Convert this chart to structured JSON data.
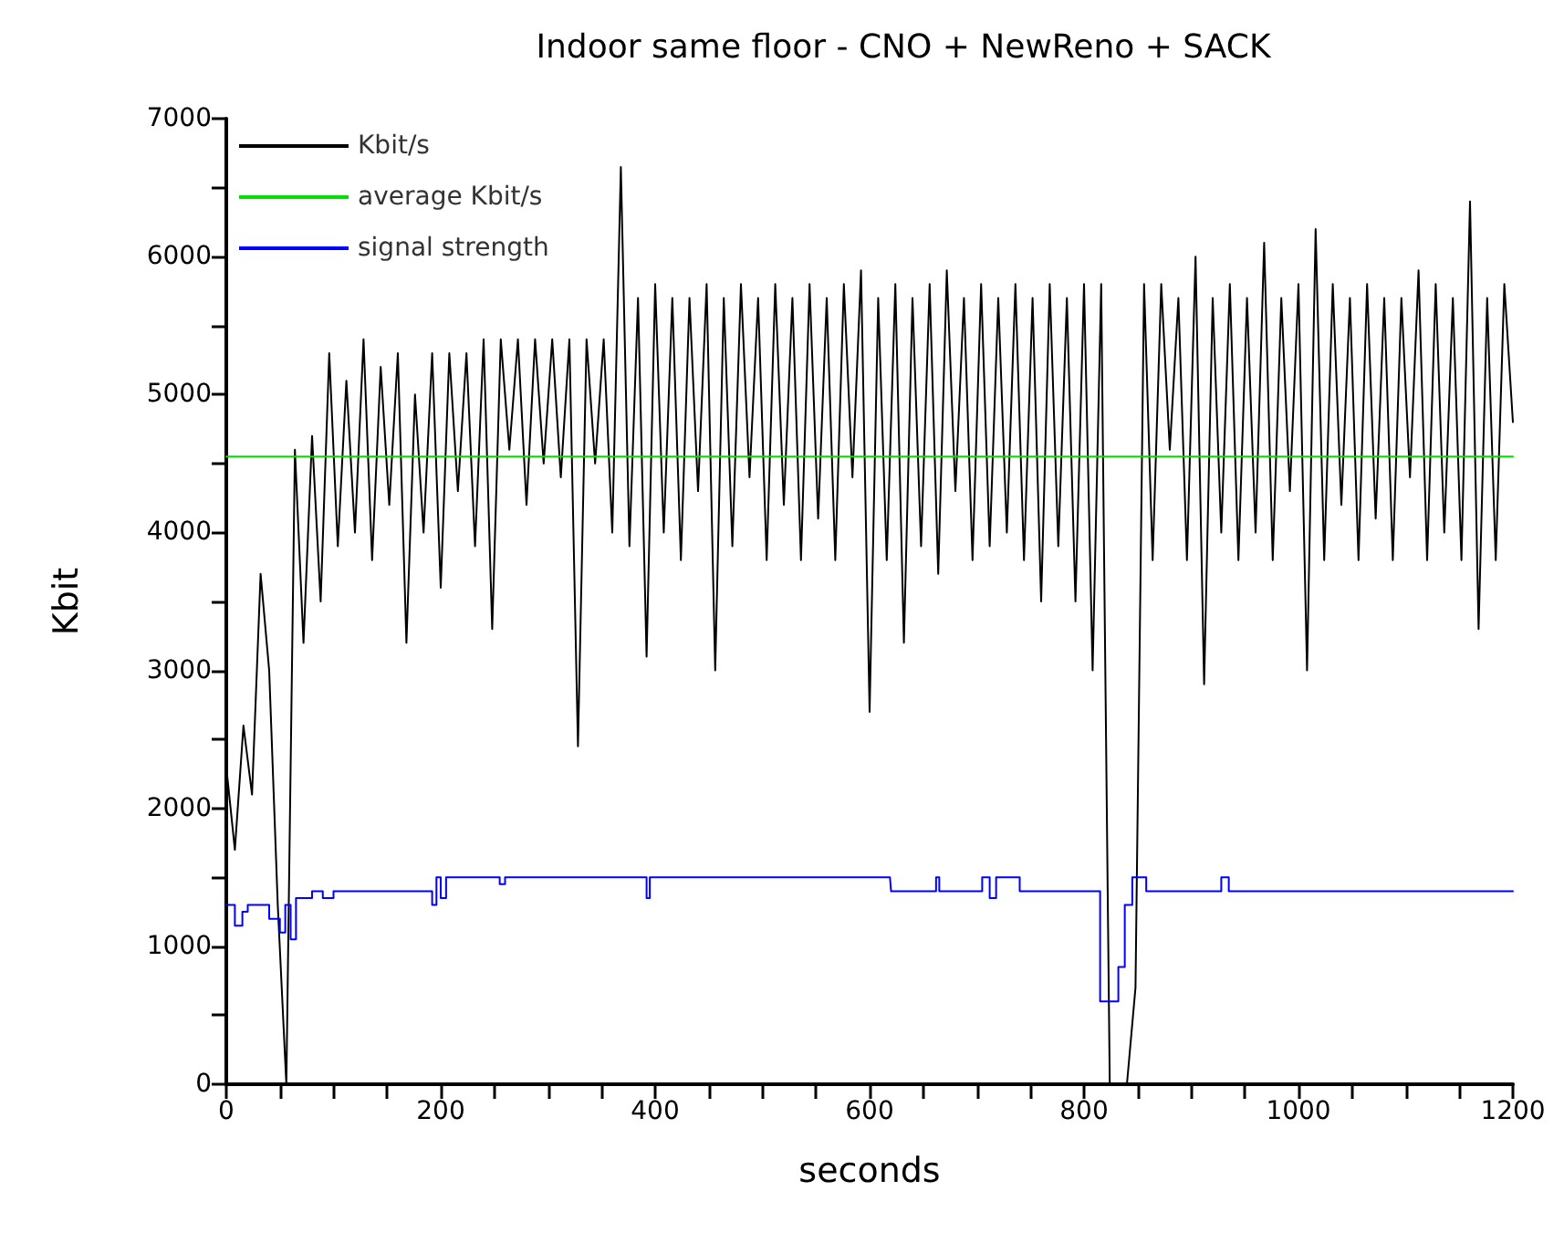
{
  "chart_data": {
    "type": "line",
    "title": "Indoor same floor - CNO + NewReno + SACK",
    "xlabel": "seconds",
    "ylabel": "Kbit",
    "xlim": [
      0,
      1200
    ],
    "ylim": [
      0,
      7000
    ],
    "xticks": [
      0,
      {
        "value": 50,
        "label": null
      },
      {
        "value": 100,
        "label": null
      },
      {
        "value": 150,
        "label": null
      },
      200,
      {
        "value": 250,
        "label": null
      },
      {
        "value": 300,
        "label": null
      },
      {
        "value": 350,
        "label": null
      },
      400,
      {
        "value": 450,
        "label": null
      },
      {
        "value": 500,
        "label": null
      },
      {
        "value": 550,
        "label": null
      },
      600,
      {
        "value": 650,
        "label": null
      },
      {
        "value": 700,
        "label": null
      },
      {
        "value": 750,
        "label": null
      },
      800,
      {
        "value": 850,
        "label": null
      },
      {
        "value": 900,
        "label": null
      },
      {
        "value": 950,
        "label": null
      },
      1000,
      {
        "value": 1050,
        "label": null
      },
      {
        "value": 1100,
        "label": null
      },
      {
        "value": 1150,
        "label": null
      },
      1200
    ],
    "yticks": [
      0,
      {
        "value": 500,
        "label": null
      },
      1000,
      {
        "value": 1500,
        "label": null
      },
      2000,
      {
        "value": 2500,
        "label": null
      },
      3000,
      {
        "value": 3500,
        "label": null
      },
      4000,
      {
        "value": 4500,
        "label": null
      },
      5000,
      {
        "value": 5500,
        "label": null
      },
      6000,
      {
        "value": 6500,
        "label": null
      },
      7000
    ],
    "grid": false,
    "legend": "top left",
    "marker": "none",
    "line_style": "solid",
    "series": [
      {
        "name": "Kbit/s",
        "color": "#000000",
        "x": [
          0,
          8,
          16,
          24,
          32,
          40,
          48,
          56,
          64,
          72,
          80,
          88,
          96,
          104,
          112,
          120,
          128,
          136,
          144,
          152,
          160,
          168,
          176,
          184,
          192,
          200,
          208,
          216,
          224,
          232,
          240,
          248,
          256,
          264,
          272,
          280,
          288,
          296,
          304,
          312,
          320,
          328,
          336,
          344,
          352,
          360,
          368,
          376,
          384,
          392,
          400,
          408,
          416,
          424,
          432,
          440,
          448,
          456,
          464,
          472,
          480,
          488,
          496,
          504,
          512,
          520,
          528,
          536,
          544,
          552,
          560,
          568,
          576,
          584,
          592,
          600,
          608,
          616,
          624,
          632,
          640,
          648,
          656,
          664,
          672,
          680,
          688,
          696,
          704,
          712,
          720,
          728,
          736,
          744,
          752,
          760,
          768,
          776,
          784,
          792,
          800,
          808,
          816,
          824,
          832,
          840,
          848,
          856,
          864,
          872,
          880,
          888,
          896,
          904,
          912,
          920,
          928,
          936,
          944,
          952,
          960,
          968,
          976,
          984,
          992,
          1000,
          1008,
          1016,
          1024,
          1032,
          1040,
          1048,
          1056,
          1064,
          1072,
          1080,
          1088,
          1096,
          1104,
          1112,
          1120,
          1128,
          1136,
          1144,
          1152,
          1160,
          1168,
          1176,
          1184,
          1192,
          1200
        ],
        "values": [
          2300,
          1700,
          2600,
          2100,
          3700,
          3000,
          1300,
          0,
          4600,
          3200,
          4700,
          3500,
          5300,
          3900,
          5100,
          4000,
          5400,
          3800,
          5200,
          4200,
          5300,
          3200,
          5000,
          4000,
          5300,
          3600,
          5300,
          4300,
          5300,
          3900,
          5400,
          3300,
          5400,
          4600,
          5400,
          4200,
          5400,
          4500,
          5400,
          4400,
          5400,
          2450,
          5400,
          4500,
          5400,
          4000,
          6650,
          3900,
          5700,
          3100,
          5800,
          4000,
          5700,
          3800,
          5700,
          4300,
          5800,
          3000,
          5700,
          3900,
          5800,
          4400,
          5700,
          3800,
          5800,
          4200,
          5700,
          3800,
          5800,
          4100,
          5700,
          3800,
          5800,
          4400,
          5900,
          2700,
          5700,
          3800,
          5800,
          3200,
          5700,
          3900,
          5800,
          3700,
          5900,
          4300,
          5700,
          3800,
          5800,
          3900,
          5700,
          4000,
          5800,
          3800,
          5700,
          3500,
          5800,
          3900,
          5700,
          3500,
          5800,
          3000,
          5800,
          0,
          0,
          0,
          700,
          5800,
          3800,
          5800,
          4600,
          5700,
          3800,
          6000,
          2900,
          5700,
          4000,
          5800,
          3800,
          5700,
          4000,
          6100,
          3800,
          5700,
          4300,
          5800,
          3000,
          6200,
          3800,
          5800,
          4200,
          5700,
          3800,
          5800,
          4100,
          5700,
          3800,
          5700,
          4400,
          5900,
          3800,
          5800,
          4000,
          5700,
          3800,
          6400,
          3300,
          5700,
          3800,
          5800,
          4800
        ]
      },
      {
        "name": "average Kbit/s",
        "color": "#00e000",
        "x": [
          0,
          1200
        ],
        "values": [
          4550,
          4550
        ]
      },
      {
        "name": "signal strength",
        "color": "#0000ff",
        "type": "step",
        "x": [
          0,
          5,
          8,
          15,
          20,
          35,
          40,
          50,
          55,
          60,
          65,
          80,
          90,
          100,
          190,
          192,
          196,
          200,
          205,
          250,
          255,
          260,
          390,
          392,
          395,
          619,
          620,
          660,
          662,
          665,
          700,
          705,
          712,
          718,
          735,
          740,
          812,
          815,
          828,
          832,
          838,
          845,
          855,
          858,
          925,
          928,
          935,
          1200
        ],
        "values": [
          1300,
          1300,
          1150,
          1250,
          1300,
          1300,
          1200,
          1100,
          1300,
          1050,
          1350,
          1400,
          1350,
          1400,
          1400,
          1300,
          1500,
          1350,
          1500,
          1500,
          1450,
          1500,
          1500,
          1350,
          1500,
          1500,
          1400,
          1400,
          1500,
          1400,
          1400,
          1500,
          1350,
          1500,
          1500,
          1400,
          1400,
          600,
          600,
          850,
          1300,
          1500,
          1500,
          1400,
          1400,
          1500,
          1400,
          1400
        ]
      }
    ]
  }
}
